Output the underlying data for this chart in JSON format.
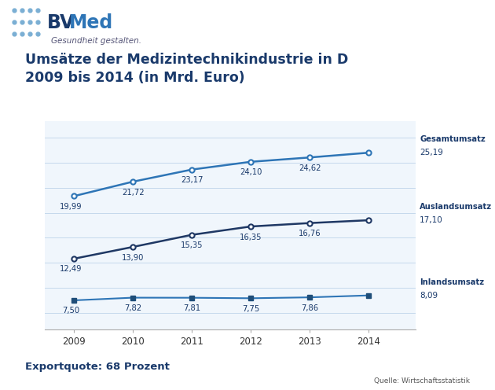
{
  "years": [
    2009,
    2010,
    2011,
    2012,
    2013,
    2014
  ],
  "gesamtumsatz": [
    19.99,
    21.72,
    23.17,
    24.1,
    24.62,
    25.19
  ],
  "auslandsumsatz": [
    12.49,
    13.9,
    15.35,
    16.35,
    16.76,
    17.1
  ],
  "inlandsumsatz": [
    7.5,
    7.82,
    7.81,
    7.75,
    7.86,
    8.09
  ],
  "gesamtumsatz_color": "#2e75b6",
  "auslandsumsatz_color": "#1f3864",
  "inlandsumsatz_color": "#2e75b6",
  "inlandsumsatz_marker_color": "#1f4e79",
  "title_line1": "Umsätze der Medizintechnikindustrie in D",
  "title_line2": "2009 bis 2014 (in Mrd. Euro)",
  "label_gesamtumsatz": "Gesamtumsatz",
  "label_auslandsumsatz": "Auslandsumsatz",
  "label_inlandsumsatz": "Inlandsumsatz",
  "footer_left": "Exportquote: 68 Prozent",
  "footer_right": "Quelle: Wirtschaftsstatistik",
  "header_bg": "#dce9f5",
  "chart_bg": "#f0f6fc",
  "body_bg": "#ffffff",
  "grid_color": "#c5d9ec",
  "logo_subtext": "Gesundheit gestalten.",
  "ylim_min": 4,
  "ylim_max": 29,
  "gesamt_label_below": [
    true,
    true,
    true,
    true,
    true,
    false
  ],
  "ausland_label_below": [
    true,
    true,
    true,
    true,
    true,
    false
  ],
  "inland_label_below": [
    true,
    true,
    true,
    true,
    true,
    false
  ]
}
